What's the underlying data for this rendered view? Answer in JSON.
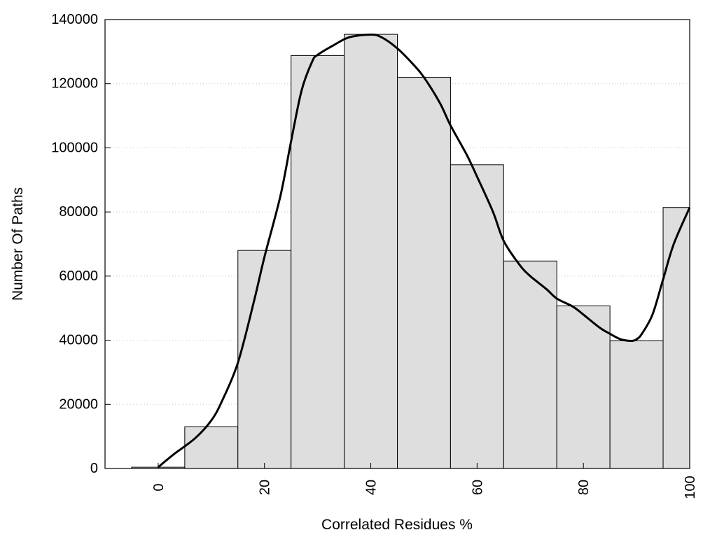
{
  "chart_data": {
    "type": "bar",
    "title": "",
    "xlabel": "Correlated Residues %",
    "ylabel": "Number Of Paths",
    "bin_width": 10,
    "x": [
      0,
      10,
      20,
      30,
      40,
      50,
      60,
      70,
      80,
      90,
      100
    ],
    "values": [
      400,
      13000,
      68000,
      128800,
      135400,
      122000,
      94700,
      64700,
      50700,
      39800,
      81400
    ],
    "xlim": [
      -10,
      100
    ],
    "ylim": [
      0,
      140000
    ],
    "xticks": [
      "0",
      "20",
      "40",
      "60",
      "80",
      "100"
    ],
    "yticks": [
      "0",
      "20000",
      "40000",
      "60000",
      "80000",
      "100000",
      "120000",
      "140000"
    ],
    "curve": {
      "type": "line",
      "x": [
        0,
        3,
        7,
        10,
        12,
        15,
        18,
        20,
        23,
        25,
        27,
        29,
        30,
        33,
        36,
        40,
        42,
        45,
        48,
        50,
        53,
        55,
        58,
        60,
        63,
        65,
        68,
        70,
        73,
        75,
        78,
        80,
        83,
        85,
        87,
        89,
        90,
        91,
        93,
        95,
        97,
        100
      ],
      "y": [
        400,
        4500,
        9500,
        15000,
        21000,
        33000,
        52000,
        66000,
        85000,
        102000,
        118000,
        127000,
        129000,
        132000,
        134500,
        135300,
        134500,
        131000,
        126000,
        122000,
        114000,
        107000,
        98000,
        91000,
        80000,
        71000,
        63500,
        60000,
        56000,
        53000,
        50500,
        48000,
        44000,
        42000,
        40300,
        39800,
        40300,
        42000,
        48000,
        59000,
        70000,
        81400
      ]
    },
    "grid": "y-dotted",
    "legend": "none",
    "colors": {
      "bar_fill": "#dedede",
      "bar_stroke": "#000000",
      "curve": "#000000",
      "grid": "#c8c8c8"
    }
  }
}
